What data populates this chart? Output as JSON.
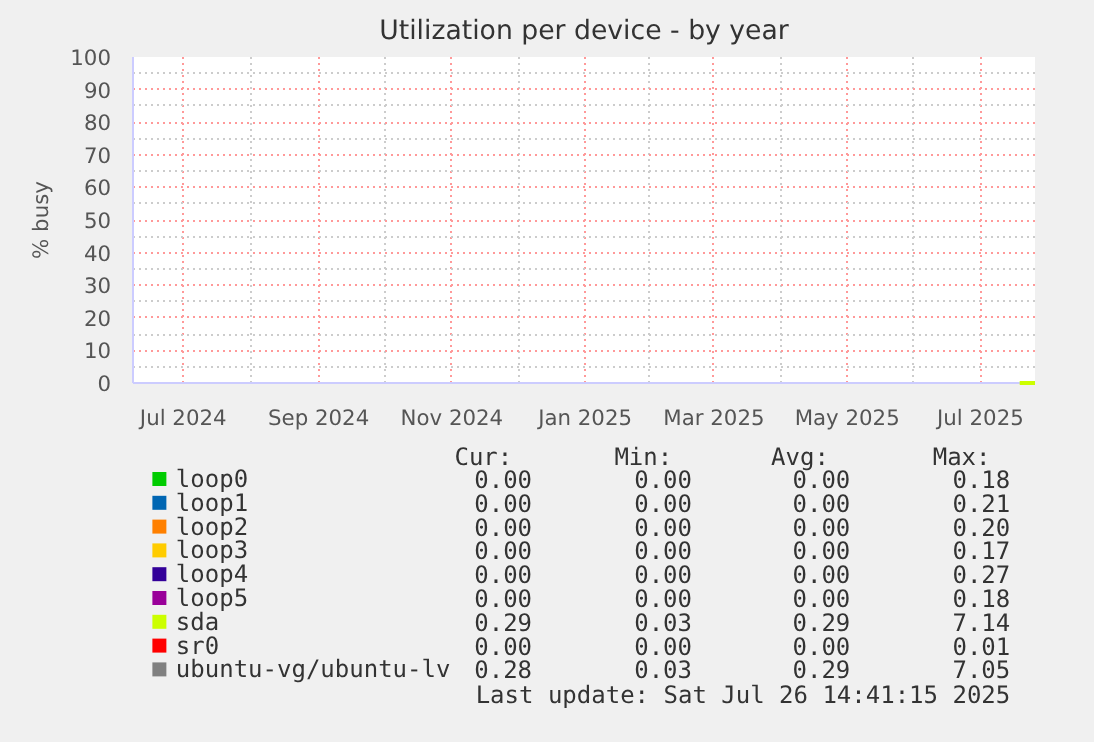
{
  "chart_data": {
    "type": "line",
    "title": "Utilization per device - by year",
    "ylabel": "% busy",
    "x": [
      "2025-07-19",
      "2025-07-26"
    ],
    "xlim": [
      "2024-06-08",
      "2025-07-26"
    ],
    "xticks": [
      {
        "value": "2024-07-01",
        "label": "Jul 2024"
      },
      {
        "value": "2024-09-01",
        "label": "Sep 2024"
      },
      {
        "value": "2024-11-01",
        "label": "Nov 2024"
      },
      {
        "value": "2025-01-01",
        "label": "Jan 2025"
      },
      {
        "value": "2025-03-01",
        "label": "Mar 2025"
      },
      {
        "value": "2025-05-01",
        "label": "May 2025"
      },
      {
        "value": "2025-07-01",
        "label": "Jul 2025"
      }
    ],
    "ylim": [
      0,
      100
    ],
    "yticks": [
      0,
      10,
      20,
      30,
      40,
      50,
      60,
      70,
      80,
      90,
      100
    ],
    "grid": true,
    "legend": "bottom",
    "marker": "none",
    "line_style": "solid",
    "series": [
      {
        "name": "loop0",
        "color": "#00cc00",
        "values": [
          null,
          null
        ]
      },
      {
        "name": "loop1",
        "color": "#0066b3",
        "values": [
          null,
          null
        ]
      },
      {
        "name": "loop2",
        "color": "#ff8000",
        "values": [
          null,
          null
        ]
      },
      {
        "name": "loop3",
        "color": "#ffcc00",
        "values": [
          null,
          null
        ]
      },
      {
        "name": "loop4",
        "color": "#330099",
        "values": [
          null,
          null
        ]
      },
      {
        "name": "loop5",
        "color": "#990099",
        "values": [
          null,
          null
        ]
      },
      {
        "name": "sda",
        "color": "#ccff00",
        "values": [
          0,
          0
        ]
      },
      {
        "name": "sr0",
        "color": "#ff0000",
        "values": [
          null,
          null
        ]
      },
      {
        "name": "ubuntu-vg/ubuntu-lv",
        "color": "#808080",
        "values": [
          null,
          null
        ]
      }
    ],
    "annotations": [
      "Cur:",
      "Min:",
      "Avg:",
      "Max:",
      "0.00",
      "0.00",
      "0.00",
      "0.18",
      "0.00",
      "0.00",
      "0.00",
      "0.21",
      "0.00",
      "0.00",
      "0.00",
      "0.20",
      "0.00",
      "0.00",
      "0.00",
      "0.17",
      "0.00",
      "0.00",
      "0.00",
      "0.27",
      "0.00",
      "0.00",
      "0.00",
      "0.18",
      "0.29",
      "0.03",
      "0.29",
      "7.14",
      "0.00",
      "0.00",
      "0.00",
      "0.01",
      "0.28",
      "0.03",
      "0.29",
      "7.05",
      "Last update: Sat Jul 26 14:41:15 2025"
    ]
  }
}
